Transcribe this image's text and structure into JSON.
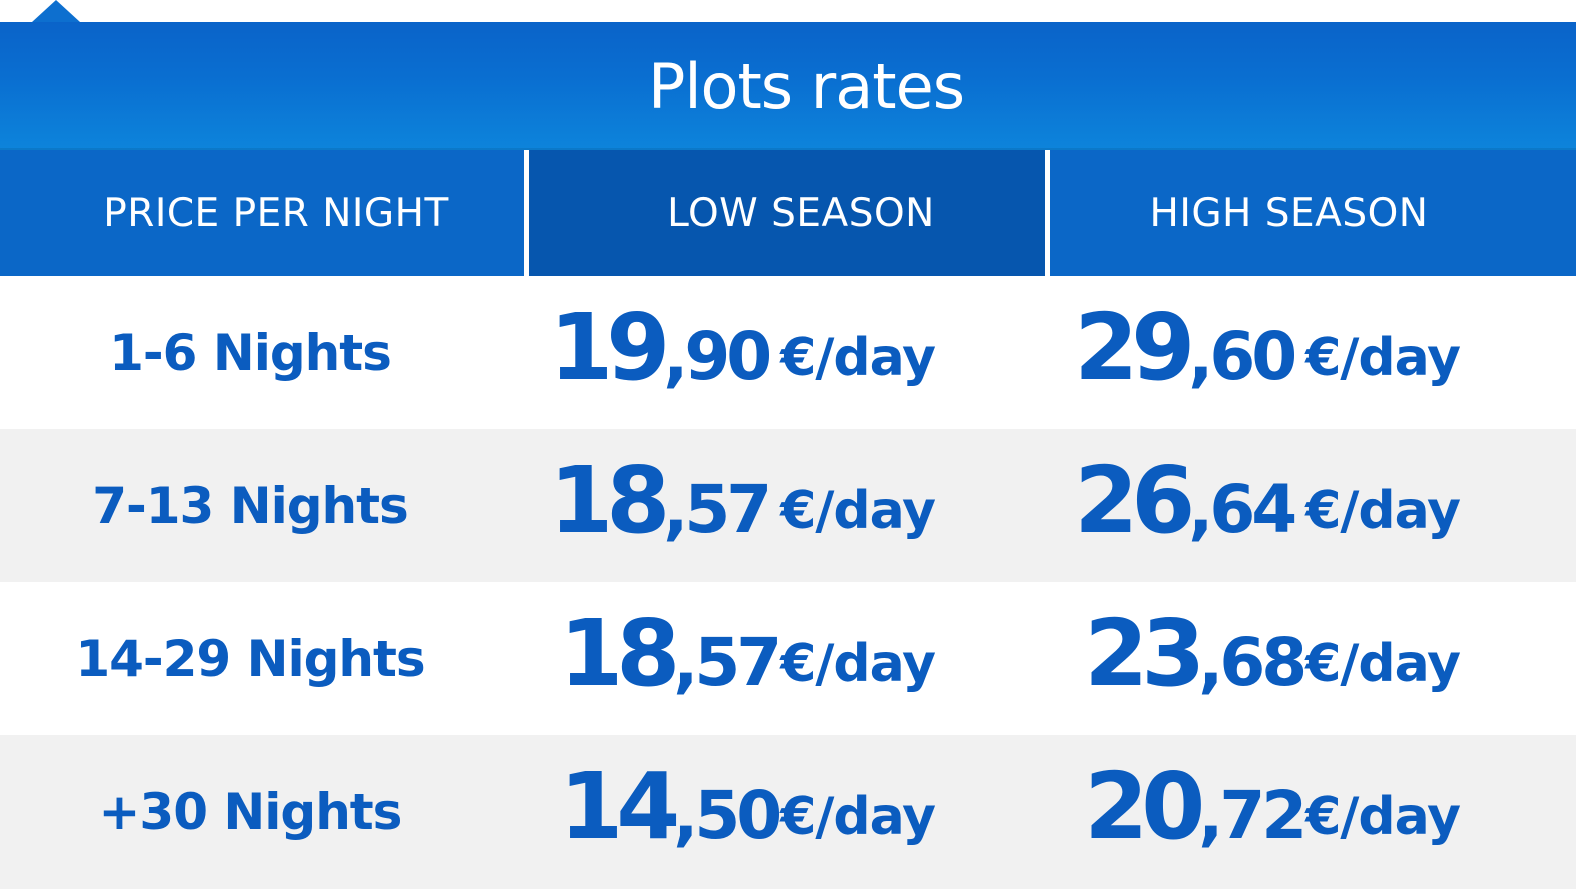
{
  "title": "Plots rates",
  "headers": {
    "col1": "PRICE PER NIGHT",
    "col2": "LOW SEASON",
    "col3": "HIGH SEASON"
  },
  "rows": [
    {
      "label": "1-6 Nights",
      "low": {
        "int": "19",
        "dec": ",90",
        "unit": "€/day"
      },
      "high": {
        "int": "29",
        "dec": ",60",
        "unit": "€/day"
      }
    },
    {
      "label": "7-13 Nights",
      "low": {
        "int": "18",
        "dec": ",57",
        "unit": "€/day"
      },
      "high": {
        "int": "26",
        "dec": ",64",
        "unit": "€/day"
      }
    },
    {
      "label": "14-29 Nights",
      "low": {
        "int": "18",
        "dec": ",57",
        "unit": "€/day"
      },
      "high": {
        "int": "23",
        "dec": ",68",
        "unit": "€/day"
      }
    },
    {
      "label": "+30 Nights",
      "low": {
        "int": "14",
        "dec": ",50",
        "unit": "€/day"
      },
      "high": {
        "int": "20",
        "dec": ",72",
        "unit": "€/day"
      }
    }
  ],
  "colors": {
    "header_blue": "#0b67c7",
    "header_dark_blue": "#0656ae",
    "text_blue": "#0b5cbf",
    "row_alt": "#f1f1f1"
  }
}
